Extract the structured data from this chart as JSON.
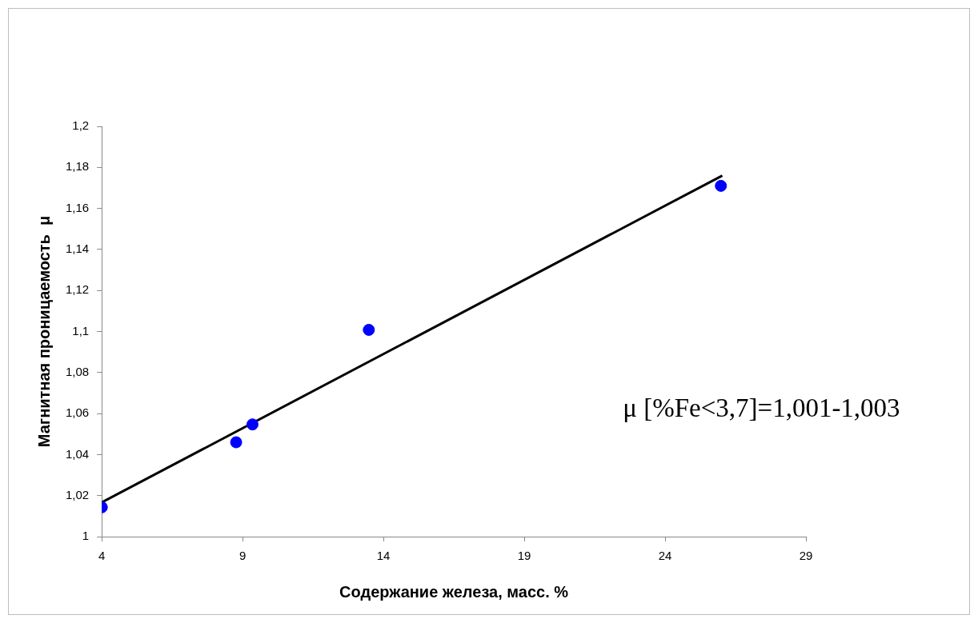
{
  "chart_data": {
    "type": "scatter",
    "xlabel": "Содержание железа, масс. %",
    "ylabel": "Магнитная проницаемость  μ",
    "xlim": [
      4,
      29
    ],
    "xticks": [
      4,
      9,
      14,
      19,
      24,
      29
    ],
    "ylim": [
      1,
      1.2
    ],
    "yticks": [
      1,
      {
        "value": 1.02,
        "label": "1,02"
      },
      {
        "value": 1.04,
        "label": "1,04"
      },
      {
        "value": 1.06,
        "label": "1,06"
      },
      {
        "value": 1.08,
        "label": "1,08"
      },
      {
        "value": 1.1,
        "label": "1,1"
      },
      {
        "value": 1.12,
        "label": "1,12"
      },
      {
        "value": 1.14,
        "label": "1,14"
      },
      {
        "value": 1.16,
        "label": "1,16"
      },
      {
        "value": 1.18,
        "label": "1,18"
      },
      {
        "value": 1.2,
        "label": "1,2"
      }
    ],
    "series": [
      {
        "color": "#0000ff",
        "marker": "circle",
        "x": [
          4,
          8.77,
          9.35,
          13.48,
          25.98
        ],
        "values": [
          1.0143,
          1.046,
          1.0547,
          1.1008,
          1.171
        ]
      },
      {
        "type": "line",
        "color": "#000000",
        "line_style": "solid",
        "x": [
          4,
          26.03
        ],
        "values": [
          1.0167,
          1.176
        ]
      }
    ],
    "annotations": [
      "μ [%Fe<3,7]=1,001-1,003"
    ],
    "grid": false,
    "legend": false
  }
}
